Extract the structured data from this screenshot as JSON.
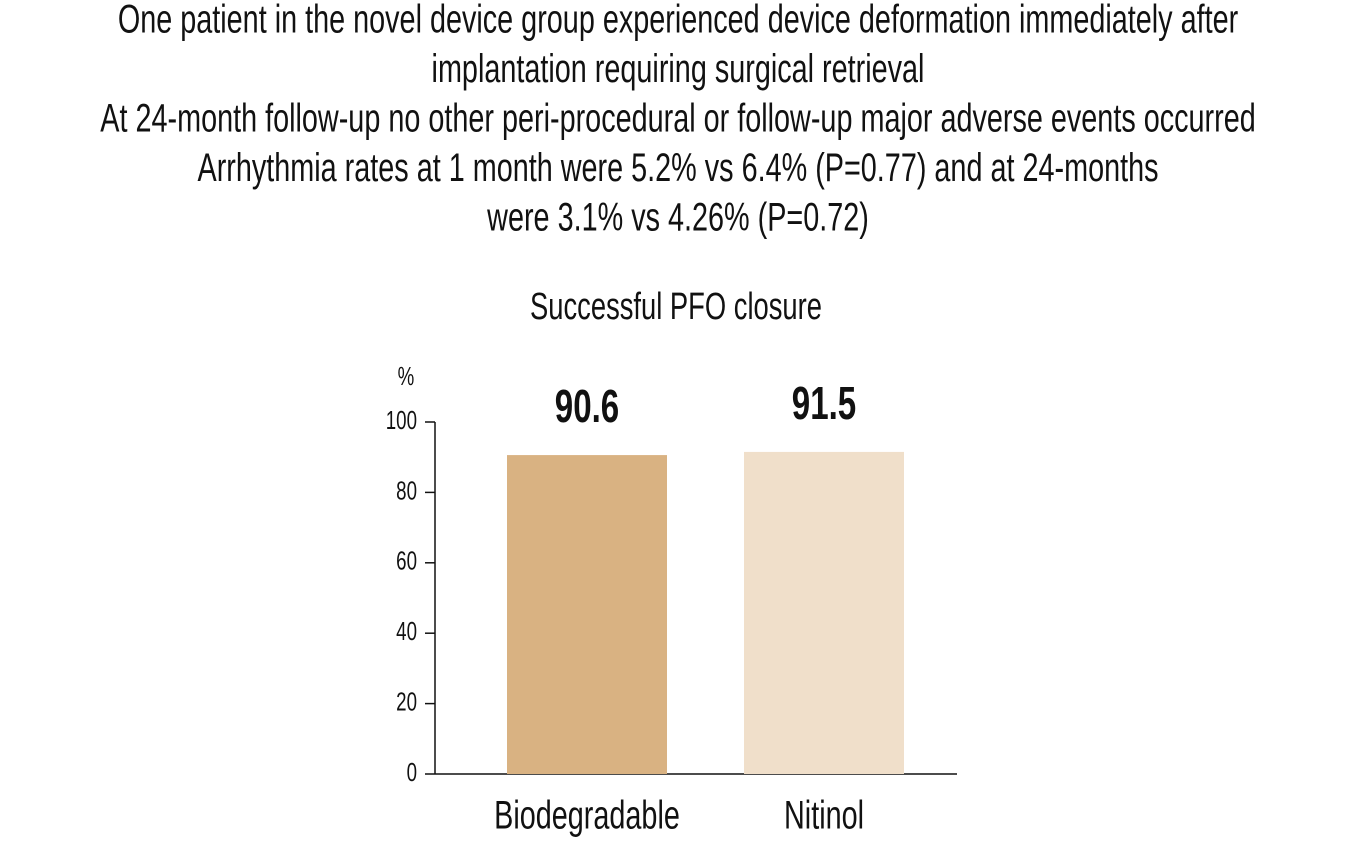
{
  "notes": [
    "One patient in the novel device group experienced device deformation immediately after",
    "implantation requiring surgical retrieval",
    "At 24-month follow-up no other peri-procedural or follow-up major adverse events occurred",
    "Arrhythmia rates at 1 month were 5.2% vs 6.4% (P=0.77) and at 24-months",
    "were 3.1% vs 4.26% (P=0.72)"
  ],
  "chart_data": {
    "type": "bar",
    "title": "Successful PFO closure",
    "y_label": "%",
    "categories": [
      "Biodegradable",
      "Nitinol"
    ],
    "values": [
      90.6,
      91.5
    ],
    "colors": [
      "#d9b282",
      "#f0dfca"
    ],
    "ylim": [
      0,
      100
    ],
    "yticks": [
      0,
      20,
      40,
      60,
      80,
      100
    ],
    "grid": false
  }
}
